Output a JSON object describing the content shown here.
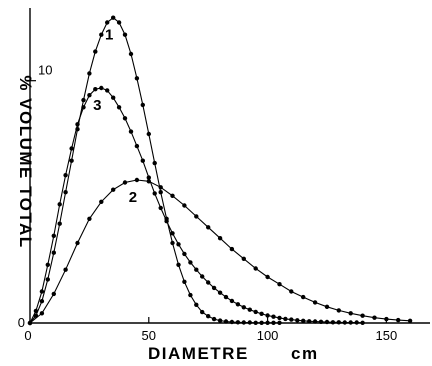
{
  "chart_data": {
    "type": "line",
    "title": "",
    "xlabel": "DIAMETRE",
    "xunit": "cm",
    "ylabel": "% VOLUME TOTAL",
    "xlim": [
      0,
      165
    ],
    "ylim": [
      0,
      13
    ],
    "x_ticks": [
      0,
      50,
      100,
      150
    ],
    "x_tick_labels": [
      "0",
      "50",
      "100",
      "150"
    ],
    "y_ticks": [
      0,
      10
    ],
    "y_tick_labels": [
      "0",
      "10"
    ],
    "grid": false,
    "series": [
      {
        "name": "1",
        "x": [
          0,
          2.5,
          5,
          7.5,
          10,
          12.5,
          15,
          17.5,
          20,
          22.5,
          25,
          27.5,
          30,
          32.5,
          35,
          37.5,
          40,
          42.5,
          45,
          47.5,
          50,
          52.5,
          55,
          57.5,
          60,
          62.5,
          65,
          67.5,
          70,
          72.5,
          75,
          77.5,
          80,
          82.5,
          85,
          87.5,
          90,
          92.5,
          95,
          97.5,
          100,
          102.5,
          105
        ],
        "y": [
          0,
          0.3,
          0.9,
          1.8,
          2.9,
          4.1,
          5.4,
          6.7,
          8.0,
          9.2,
          10.3,
          11.2,
          11.9,
          12.4,
          12.6,
          12.4,
          11.9,
          11.1,
          10.1,
          9.0,
          7.8,
          6.6,
          5.4,
          4.3,
          3.3,
          2.4,
          1.7,
          1.15,
          0.75,
          0.45,
          0.28,
          0.16,
          0.1,
          0.06,
          0.04,
          0.03,
          0.02,
          0.02,
          0.01,
          0.01,
          0.01,
          0.01,
          0.01
        ]
      },
      {
        "name": "2",
        "x": [
          0,
          5,
          10,
          15,
          20,
          25,
          30,
          35,
          40,
          45,
          50,
          55,
          60,
          65,
          70,
          75,
          80,
          85,
          90,
          95,
          100,
          105,
          110,
          115,
          120,
          125,
          130,
          135,
          140,
          145,
          150,
          155,
          160
        ],
        "y": [
          0,
          0.4,
          1.2,
          2.2,
          3.3,
          4.3,
          5.0,
          5.5,
          5.8,
          5.9,
          5.85,
          5.6,
          5.25,
          4.85,
          4.4,
          3.95,
          3.5,
          3.05,
          2.65,
          2.25,
          1.9,
          1.6,
          1.3,
          1.07,
          0.85,
          0.67,
          0.52,
          0.4,
          0.3,
          0.22,
          0.16,
          0.12,
          0.09
        ]
      },
      {
        "name": "3",
        "x": [
          0,
          2.5,
          5,
          7.5,
          10,
          12.5,
          15,
          17.5,
          20,
          22.5,
          25,
          27.5,
          30,
          32.5,
          35,
          37.5,
          40,
          42.5,
          45,
          47.5,
          50,
          52.5,
          55,
          57.5,
          60,
          62.5,
          65,
          67.5,
          70,
          72.5,
          75,
          77.5,
          80,
          82.5,
          85,
          87.5,
          90,
          92.5,
          95,
          97.5,
          100,
          102.5,
          105,
          107.5,
          110,
          112.5,
          115,
          117.5,
          120,
          122.5,
          125,
          127.5,
          130,
          132.5,
          135,
          137.5,
          140
        ],
        "y": [
          0,
          0.5,
          1.3,
          2.4,
          3.6,
          4.9,
          6.1,
          7.2,
          8.2,
          8.9,
          9.4,
          9.65,
          9.7,
          9.6,
          9.3,
          8.9,
          8.45,
          7.9,
          7.3,
          6.7,
          6.0,
          5.35,
          4.75,
          4.2,
          3.7,
          3.25,
          2.85,
          2.5,
          2.2,
          1.92,
          1.67,
          1.45,
          1.25,
          1.07,
          0.91,
          0.77,
          0.65,
          0.55,
          0.46,
          0.38,
          0.31,
          0.26,
          0.21,
          0.17,
          0.14,
          0.11,
          0.09,
          0.07,
          0.06,
          0.05,
          0.04,
          0.03,
          0.03,
          0.02,
          0.02,
          0.02,
          0.01
        ]
      }
    ]
  }
}
